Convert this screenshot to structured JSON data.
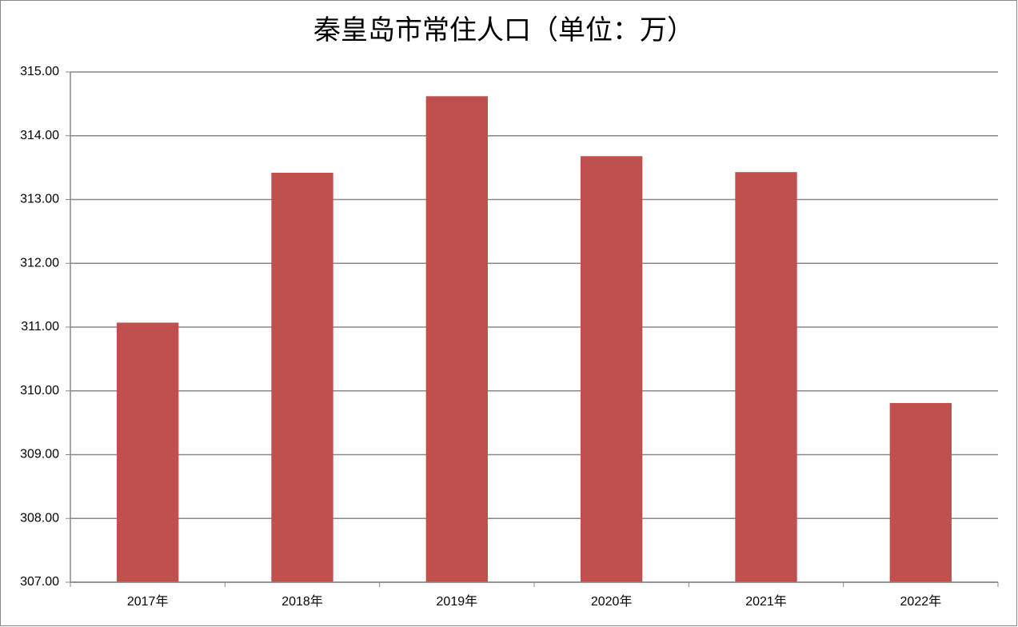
{
  "chart_data": {
    "type": "bar",
    "title": "秦皇岛市常住人口（单位：万）",
    "categories": [
      "2017年",
      "2018年",
      "2019年",
      "2020年",
      "2021年",
      "2022年"
    ],
    "values": [
      311.07,
      313.42,
      314.62,
      313.68,
      313.43,
      309.81
    ],
    "color": "#c0504d",
    "ylim": [
      307,
      315
    ],
    "yticks": [
      {
        "value": 307,
        "label": "307.00"
      },
      {
        "value": 308,
        "label": "308.00"
      },
      {
        "value": 309,
        "label": "309.00"
      },
      {
        "value": 310,
        "label": "310.00"
      },
      {
        "value": 311,
        "label": "311.00"
      },
      {
        "value": 312,
        "label": "312.00"
      },
      {
        "value": 313,
        "label": "313.00"
      },
      {
        "value": 314,
        "label": "314.00"
      },
      {
        "value": 315,
        "label": "315.00"
      }
    ],
    "grid": true
  }
}
